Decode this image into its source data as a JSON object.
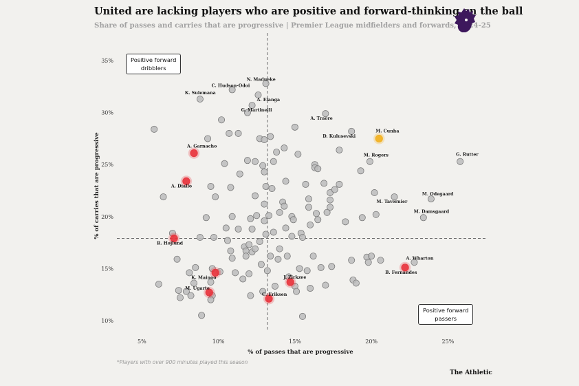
{
  "header": {
    "title": "United are lacking players who are positive and forward-thinking on the ball",
    "subtitle": "Share of passes and carries that are progressive | Premier League midfielders and forwards, 2024-25"
  },
  "logo": {
    "icon": "premier-league-lion-icon",
    "color": "#3d185c"
  },
  "callouts": {
    "top_left": {
      "line1": "Positive forward",
      "line2": "dribblers"
    },
    "bottom_right": {
      "line1": "Positive forward",
      "line2": "passers"
    }
  },
  "footnote": "*Players with over 900 minutes played this season",
  "brand": "The Athletic",
  "colors": {
    "neutral_point": "#bcbcbc",
    "neutral_stroke": "#7a7a7a",
    "united_point": "#e8333c",
    "highlight_point": "#f2b01e",
    "reference_line": "#6b6b6b"
  },
  "chart_data": {
    "type": "scatter",
    "title": "United are lacking players who are positive and forward-thinking on the ball",
    "xlabel": "% of passes that are progressive",
    "ylabel": "% of carries that are progressive",
    "xlim": [
      3.5,
      27.5
    ],
    "ylim": [
      9,
      36
    ],
    "xticks": [
      5,
      10,
      15,
      20,
      25
    ],
    "xtick_labels": [
      "5%",
      "10%",
      "15%",
      "20%",
      "25%"
    ],
    "yticks": [
      10,
      15,
      20,
      25,
      30,
      35
    ],
    "ytick_labels": [
      "10%",
      "15%",
      "20%",
      "25%",
      "30%",
      "35%"
    ],
    "reference_lines": {
      "x": 13.2,
      "y": 17.9
    },
    "labeled_points": [
      {
        "name": "C. Hudson-Odoi",
        "x": 10.9,
        "y": 32.2,
        "group": "other"
      },
      {
        "name": "N. Madueke",
        "x": 13.1,
        "y": 32.8,
        "group": "other"
      },
      {
        "name": "K. Sulemana",
        "x": 8.8,
        "y": 31.3,
        "group": "other"
      },
      {
        "name": "A. Elanga",
        "x": 12.6,
        "y": 31.7,
        "group": "other"
      },
      {
        "name": "G. Martinelli",
        "x": 12.2,
        "y": 30.7,
        "group": "other"
      },
      {
        "name": "A. Traore",
        "x": 17.0,
        "y": 29.9,
        "group": "other"
      },
      {
        "name": "D. Kulusevski",
        "x": 18.7,
        "y": 28.2,
        "group": "other"
      },
      {
        "name": "M. Cunha",
        "x": 20.5,
        "y": 27.5,
        "group": "highlight"
      },
      {
        "name": "G. Rutter",
        "x": 25.8,
        "y": 25.3,
        "group": "other"
      },
      {
        "name": "M. Rogers",
        "x": 19.9,
        "y": 25.3,
        "group": "other"
      },
      {
        "name": "A. Garnacho",
        "x": 8.4,
        "y": 26.1,
        "group": "united"
      },
      {
        "name": "A. Diallo",
        "x": 7.9,
        "y": 23.4,
        "group": "united"
      },
      {
        "name": "M. Odegaard",
        "x": 23.9,
        "y": 21.7,
        "group": "other"
      },
      {
        "name": "M. Tavernier",
        "x": 21.5,
        "y": 21.9,
        "group": "other"
      },
      {
        "name": "M. Damsgaard",
        "x": 23.4,
        "y": 19.9,
        "group": "other"
      },
      {
        "name": "R. Hojlund",
        "x": 7.1,
        "y": 17.9,
        "group": "united"
      },
      {
        "name": "A. Wharton",
        "x": 22.8,
        "y": 15.6,
        "group": "other"
      },
      {
        "name": "B. Fernandes",
        "x": 22.2,
        "y": 15.1,
        "group": "united"
      },
      {
        "name": "K. Mainoo",
        "x": 9.8,
        "y": 14.6,
        "group": "united"
      },
      {
        "name": "J. Zirkzee",
        "x": 14.7,
        "y": 13.7,
        "group": "united"
      },
      {
        "name": "M. Ugarte",
        "x": 9.4,
        "y": 12.7,
        "group": "united"
      },
      {
        "name": "C. Eriksen",
        "x": 13.3,
        "y": 12.1,
        "group": "united"
      }
    ],
    "points": [
      [
        5.8,
        28.4
      ],
      [
        6.4,
        21.9
      ],
      [
        6.1,
        13.5
      ],
      [
        7.0,
        18.4
      ],
      [
        7.3,
        15.9
      ],
      [
        7.4,
        12.9
      ],
      [
        7.5,
        12.2
      ],
      [
        7.9,
        12.8
      ],
      [
        8.1,
        14.6
      ],
      [
        8.2,
        12.4
      ],
      [
        8.4,
        13.6
      ],
      [
        8.5,
        15.1
      ],
      [
        8.8,
        18.0
      ],
      [
        8.9,
        10.5
      ],
      [
        9.2,
        19.9
      ],
      [
        9.3,
        27.5
      ],
      [
        9.5,
        22.9
      ],
      [
        9.6,
        15.0
      ],
      [
        9.5,
        13.7
      ],
      [
        9.6,
        12.4
      ],
      [
        9.5,
        12.0
      ],
      [
        9.7,
        18.0
      ],
      [
        9.8,
        21.9
      ],
      [
        10.1,
        14.7
      ],
      [
        10.2,
        29.3
      ],
      [
        10.4,
        25.1
      ],
      [
        10.5,
        18.9
      ],
      [
        10.6,
        17.7
      ],
      [
        10.8,
        22.8
      ],
      [
        10.9,
        20.0
      ],
      [
        10.7,
        28.0
      ],
      [
        10.8,
        16.7
      ],
      [
        10.9,
        16.0
      ],
      [
        11.1,
        14.6
      ],
      [
        11.3,
        18.8
      ],
      [
        11.3,
        28.0
      ],
      [
        11.4,
        24.1
      ],
      [
        11.6,
        14.0
      ],
      [
        11.7,
        17.1
      ],
      [
        11.8,
        16.7
      ],
      [
        11.8,
        16.2
      ],
      [
        11.9,
        25.4
      ],
      [
        11.9,
        30.0
      ],
      [
        12.0,
        17.3
      ],
      [
        12.0,
        14.5
      ],
      [
        12.1,
        19.8
      ],
      [
        12.1,
        12.4
      ],
      [
        12.2,
        18.8
      ],
      [
        12.2,
        16.6
      ],
      [
        12.4,
        25.3
      ],
      [
        12.4,
        22.0
      ],
      [
        12.4,
        16.9
      ],
      [
        12.5,
        20.1
      ],
      [
        12.7,
        27.5
      ],
      [
        12.7,
        17.6
      ],
      [
        12.8,
        15.4
      ],
      [
        12.9,
        24.9
      ],
      [
        12.9,
        12.8
      ],
      [
        13.0,
        27.4
      ],
      [
        13.0,
        24.3
      ],
      [
        13.0,
        21.2
      ],
      [
        13.0,
        19.6
      ],
      [
        13.1,
        22.9
      ],
      [
        13.1,
        18.3
      ],
      [
        13.2,
        14.8
      ],
      [
        13.3,
        20.1
      ],
      [
        13.4,
        27.7
      ],
      [
        13.4,
        16.2
      ],
      [
        13.5,
        22.7
      ],
      [
        13.6,
        25.3
      ],
      [
        13.6,
        18.5
      ],
      [
        13.7,
        13.3
      ],
      [
        13.8,
        26.2
      ],
      [
        13.9,
        15.9
      ],
      [
        14.0,
        20.4
      ],
      [
        14.0,
        16.9
      ],
      [
        14.2,
        21.4
      ],
      [
        14.3,
        26.6
      ],
      [
        14.3,
        21.0
      ],
      [
        14.4,
        23.4
      ],
      [
        14.4,
        18.9
      ],
      [
        14.5,
        16.2
      ],
      [
        14.6,
        14.2
      ],
      [
        14.8,
        20.0
      ],
      [
        14.8,
        18.1
      ],
      [
        14.9,
        19.7
      ],
      [
        15.0,
        28.6
      ],
      [
        15.0,
        13.3
      ],
      [
        15.1,
        12.8
      ],
      [
        15.2,
        26.0
      ],
      [
        15.3,
        15.0
      ],
      [
        15.4,
        18.4
      ],
      [
        15.5,
        18.0
      ],
      [
        15.5,
        10.4
      ],
      [
        15.7,
        23.1
      ],
      [
        15.8,
        14.8
      ],
      [
        15.9,
        21.7
      ],
      [
        15.9,
        20.9
      ],
      [
        16.0,
        19.2
      ],
      [
        16.0,
        13.1
      ],
      [
        16.2,
        16.2
      ],
      [
        16.3,
        25.0
      ],
      [
        16.3,
        24.7
      ],
      [
        16.4,
        20.3
      ],
      [
        16.5,
        24.6
      ],
      [
        16.5,
        19.7
      ],
      [
        16.7,
        15.1
      ],
      [
        16.9,
        23.2
      ],
      [
        17.0,
        13.4
      ],
      [
        17.1,
        20.4
      ],
      [
        17.3,
        22.3
      ],
      [
        17.3,
        21.6
      ],
      [
        17.3,
        20.9
      ],
      [
        17.4,
        15.2
      ],
      [
        17.6,
        22.6
      ],
      [
        17.9,
        26.4
      ],
      [
        17.9,
        23.1
      ],
      [
        18.3,
        19.5
      ],
      [
        18.7,
        15.8
      ],
      [
        18.8,
        13.9
      ],
      [
        19.0,
        13.6
      ],
      [
        19.3,
        24.4
      ],
      [
        19.4,
        19.9
      ],
      [
        19.7,
        16.1
      ],
      [
        19.8,
        15.6
      ],
      [
        20.0,
        16.2
      ],
      [
        20.2,
        22.3
      ],
      [
        20.3,
        20.2
      ],
      [
        20.6,
        15.8
      ]
    ]
  }
}
